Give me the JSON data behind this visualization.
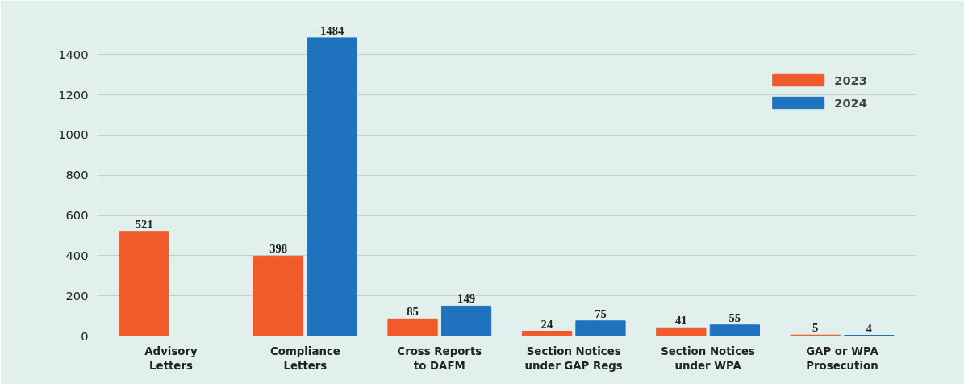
{
  "chart_data": {
    "type": "bar",
    "categories": [
      "Advisory\nLetters",
      "Compliance\nLetters",
      "Cross Reports\nto DAFM",
      "Section Notices\nunder GAP Regs",
      "Section Notices\nunder WPA",
      "GAP or WPA\nProsecution"
    ],
    "series": [
      {
        "name": "2023",
        "color": "#f15a2b",
        "values": [
          521,
          398,
          85,
          24,
          41,
          5
        ]
      },
      {
        "name": "2024",
        "color": "#1f72bd",
        "values": [
          null,
          1484,
          149,
          75,
          55,
          4
        ]
      }
    ],
    "ylim": [
      0,
      1550
    ],
    "yticks": [
      0,
      200,
      400,
      600,
      800,
      1000,
      1200,
      1400
    ],
    "grid": "y",
    "legend": "top right",
    "data_labels": true
  }
}
